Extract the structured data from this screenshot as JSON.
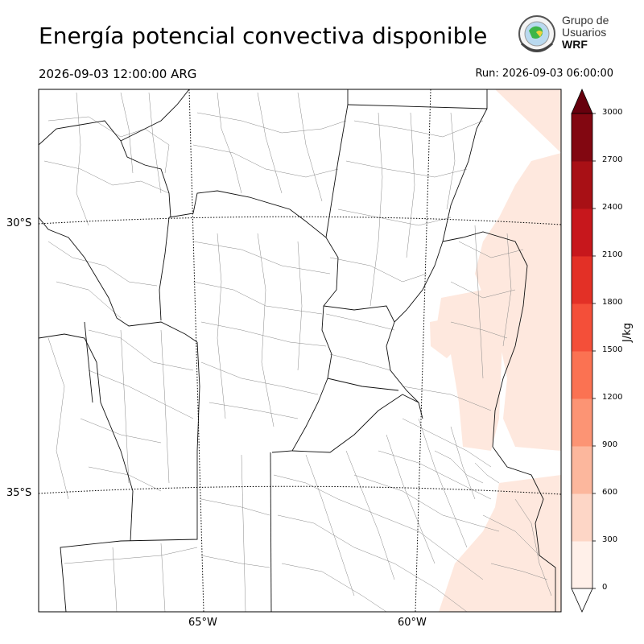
{
  "title": "Energía potencial convectiva disponible",
  "valid_time": "2026-09-03 12:00:00 ARG",
  "run_time": "Run: 2026-09-03 06:00:00",
  "logo": {
    "line1": "Grupo de",
    "line2": "Usuarios",
    "line3": "WRF",
    "icon": "globe-seal-icon"
  },
  "map": {
    "latitude_labels": [
      "30°S",
      "35°S"
    ],
    "longitude_labels": [
      "65°W",
      "60°W"
    ],
    "field_color": "#fee8de",
    "colors": {
      "provinces": "#000000",
      "departments": "#888888",
      "graticule": "#000000"
    }
  },
  "colorbar": {
    "unit": "J/kg",
    "ticks": [
      "0",
      "300",
      "600",
      "900",
      "1200",
      "1500",
      "1800",
      "2100",
      "2400",
      "2700",
      "3000"
    ],
    "colors": [
      "#fff0e9",
      "#fdd6c6",
      "#fcb79d",
      "#fc9474",
      "#fb7252",
      "#f44f39",
      "#e33026",
      "#c7171c",
      "#a81015",
      "#820711"
    ],
    "extend_low_color": "#ffffff",
    "extend_high_color": "#67000d"
  }
}
